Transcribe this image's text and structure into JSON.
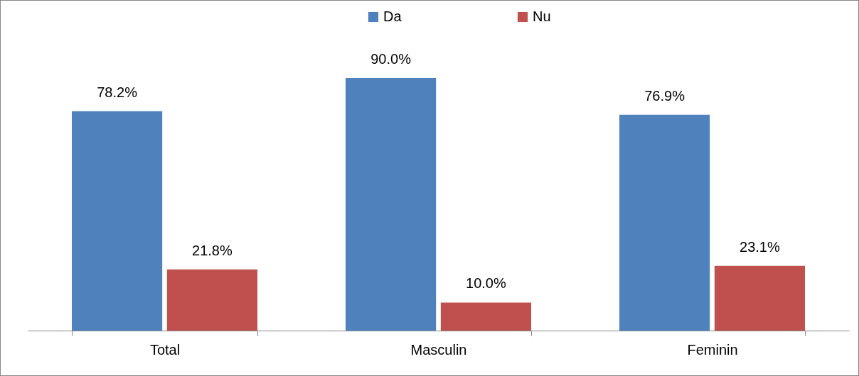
{
  "chart_data": {
    "type": "bar",
    "categories": [
      "Total",
      "Masculin",
      "Feminin"
    ],
    "series": [
      {
        "name": "Da",
        "color": "#4f81bd",
        "values": [
          78.2,
          90.0,
          76.9
        ],
        "value_labels": [
          "78.2%",
          "90.0%",
          "76.9%"
        ]
      },
      {
        "name": "Nu",
        "color": "#c0504d",
        "values": [
          21.8,
          10.0,
          23.1
        ],
        "value_labels": [
          "21.8%",
          "10.0%",
          "23.1%"
        ]
      }
    ],
    "legend": "top"
  }
}
